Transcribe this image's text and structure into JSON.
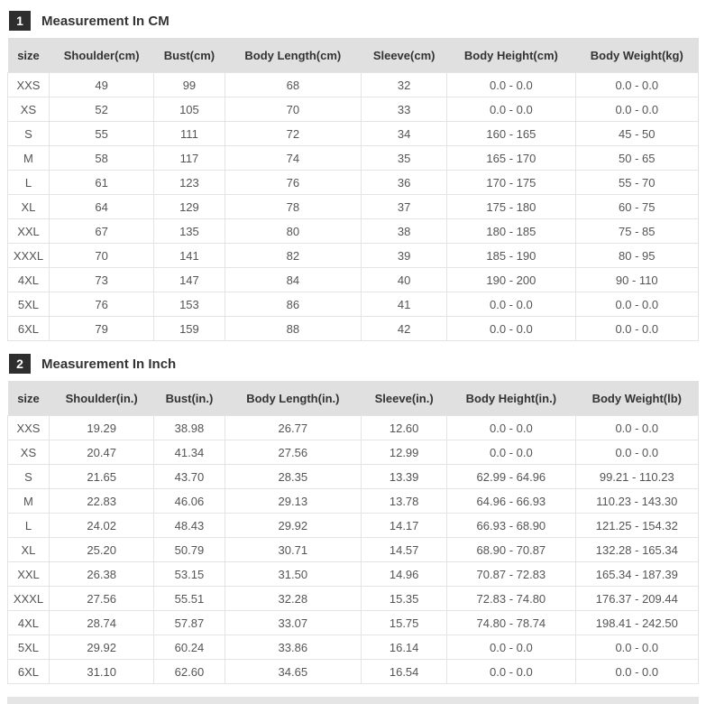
{
  "colors": {
    "badge_bg": "#2e2e2e",
    "badge_text": "#ffffff",
    "table_header_bg": "#e0e0e0",
    "cell_border": "#e4e4e4",
    "body_text": "#555555",
    "title_text": "#333333"
  },
  "sections": [
    {
      "badge": "1",
      "title": "Measurement In CM",
      "columns": [
        "size",
        "Shoulder(cm)",
        "Bust(cm)",
        "Body Length(cm)",
        "Sleeve(cm)",
        "Body Height(cm)",
        "Body Weight(kg)"
      ],
      "rows": [
        [
          "XXS",
          "49",
          "99",
          "68",
          "32",
          "0.0 - 0.0",
          "0.0 - 0.0"
        ],
        [
          "XS",
          "52",
          "105",
          "70",
          "33",
          "0.0 - 0.0",
          "0.0 - 0.0"
        ],
        [
          "S",
          "55",
          "111",
          "72",
          "34",
          "160 - 165",
          "45 - 50"
        ],
        [
          "M",
          "58",
          "117",
          "74",
          "35",
          "165 - 170",
          "50 - 65"
        ],
        [
          "L",
          "61",
          "123",
          "76",
          "36",
          "170 - 175",
          "55 - 70"
        ],
        [
          "XL",
          "64",
          "129",
          "78",
          "37",
          "175 - 180",
          "60 - 75"
        ],
        [
          "XXL",
          "67",
          "135",
          "80",
          "38",
          "180 - 185",
          "75 - 85"
        ],
        [
          "XXXL",
          "70",
          "141",
          "82",
          "39",
          "185 - 190",
          "80 - 95"
        ],
        [
          "4XL",
          "73",
          "147",
          "84",
          "40",
          "190 - 200",
          "90 - 110"
        ],
        [
          "5XL",
          "76",
          "153",
          "86",
          "41",
          "0.0 - 0.0",
          "0.0 - 0.0"
        ],
        [
          "6XL",
          "79",
          "159",
          "88",
          "42",
          "0.0 - 0.0",
          "0.0 - 0.0"
        ]
      ]
    },
    {
      "badge": "2",
      "title": "Measurement In Inch",
      "columns": [
        "size",
        "Shoulder(in.)",
        "Bust(in.)",
        "Body Length(in.)",
        "Sleeve(in.)",
        "Body Height(in.)",
        "Body Weight(lb)"
      ],
      "rows": [
        [
          "XXS",
          "19.29",
          "38.98",
          "26.77",
          "12.60",
          "0.0 - 0.0",
          "0.0 - 0.0"
        ],
        [
          "XS",
          "20.47",
          "41.34",
          "27.56",
          "12.99",
          "0.0 - 0.0",
          "0.0 - 0.0"
        ],
        [
          "S",
          "21.65",
          "43.70",
          "28.35",
          "13.39",
          "62.99 - 64.96",
          "99.21 - 110.23"
        ],
        [
          "M",
          "22.83",
          "46.06",
          "29.13",
          "13.78",
          "64.96 - 66.93",
          "110.23 - 143.30"
        ],
        [
          "L",
          "24.02",
          "48.43",
          "29.92",
          "14.17",
          "66.93 - 68.90",
          "121.25 - 154.32"
        ],
        [
          "XL",
          "25.20",
          "50.79",
          "30.71",
          "14.57",
          "68.90 - 70.87",
          "132.28 - 165.34"
        ],
        [
          "XXL",
          "26.38",
          "53.15",
          "31.50",
          "14.96",
          "70.87 - 72.83",
          "165.34 - 187.39"
        ],
        [
          "XXXL",
          "27.56",
          "55.51",
          "32.28",
          "15.35",
          "72.83 - 74.80",
          "176.37 - 209.44"
        ],
        [
          "4XL",
          "28.74",
          "57.87",
          "33.07",
          "15.75",
          "74.80 - 78.74",
          "198.41 - 242.50"
        ],
        [
          "5XL",
          "29.92",
          "60.24",
          "33.86",
          "16.14",
          "0.0 - 0.0",
          "0.0 - 0.0"
        ],
        [
          "6XL",
          "31.10",
          "62.60",
          "34.65",
          "16.54",
          "0.0 - 0.0",
          "0.0 - 0.0"
        ]
      ]
    }
  ]
}
